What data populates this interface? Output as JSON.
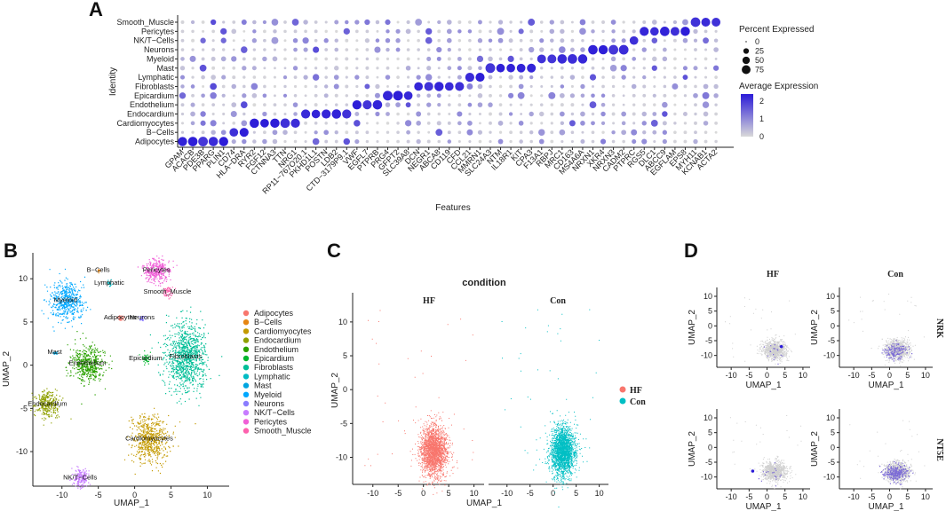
{
  "panels": {
    "a": "A",
    "b": "B",
    "c": "C",
    "d": "D"
  },
  "chart_data": [
    {
      "type": "dotplot",
      "panel": "A",
      "xlabel": "Features",
      "ylabel": "Identity",
      "identities": [
        "Smooth_Muscle",
        "Pericytes",
        "NK/T−Cells",
        "Neurons",
        "Myeloid",
        "Mast",
        "Lymphatic",
        "Fibroblasts",
        "Epicardium",
        "Endothelium",
        "Endocardium",
        "Cardiomyocytes",
        "B−Cells",
        "Adipocytes"
      ],
      "features": [
        "GPAM",
        "ACACB",
        "PDE3B",
        "PPARG",
        "PLIN1",
        "CD74",
        "HLA−DRA",
        "RYR2",
        "FGF12",
        "CTNNA3",
        "TTN",
        "NRG1",
        "RP11−767O20.1",
        "PKHD1L1",
        "POSTN",
        "LDB2",
        "CTD−3179P9.1",
        "VWF",
        "EGFL7",
        "PTPRB",
        "PRG4",
        "GFPT2",
        "SLC39A8",
        "DCN",
        "NEGR1",
        "ABCA8",
        "CD119",
        "CFD",
        "CCL21",
        "MMRN1",
        "SLC24A3",
        "NTM",
        "IL18R1",
        "KIT",
        "CPA3",
        "F13A1",
        "RBPJ",
        "MRC1",
        "CD163",
        "MS4A6A",
        "NRXN1",
        "XKR4",
        "NRXN3",
        "CADM2",
        "PTPRC",
        "RGS5",
        "DLC1",
        "ABCC9",
        "EGFLAM",
        "EPS8",
        "MYH11",
        "KCNAB1",
        "ACTA2"
      ],
      "marker_blocks": [
        {
          "identity": "Adipocytes",
          "features": [
            "GPAM",
            "ACACB",
            "PDE3B",
            "PPARG",
            "PLIN1"
          ]
        },
        {
          "identity": "B−Cells",
          "features": [
            "CD74",
            "HLA−DRA"
          ]
        },
        {
          "identity": "Cardiomyocytes",
          "features": [
            "RYR2",
            "FGF12",
            "CTNNA3",
            "TTN",
            "NRG1"
          ]
        },
        {
          "identity": "Endocardium",
          "features": [
            "RP11−767O20.1",
            "PKHD1L1",
            "POSTN",
            "LDB2",
            "CTD−3179P9.1"
          ]
        },
        {
          "identity": "Endothelium",
          "features": [
            "VWF",
            "EGFL7",
            "PTPRB"
          ]
        },
        {
          "identity": "Epicardium",
          "features": [
            "PRG4",
            "GFPT2",
            "SLC39A8"
          ]
        },
        {
          "identity": "Fibroblasts",
          "features": [
            "DCN",
            "NEGR1",
            "ABCA8",
            "CD119",
            "CFD"
          ]
        },
        {
          "identity": "Lymphatic",
          "features": [
            "CCL21",
            "MMRN1"
          ]
        },
        {
          "identity": "Mast",
          "features": [
            "SLC24A3",
            "NTM",
            "IL18R1",
            "KIT",
            "CPA3"
          ]
        },
        {
          "identity": "Myeloid",
          "features": [
            "F13A1",
            "RBPJ",
            "MRC1",
            "CD163",
            "MS4A6A"
          ]
        },
        {
          "identity": "Neurons",
          "features": [
            "NRXN1",
            "XKR4",
            "NRXN3",
            "CADM2"
          ]
        },
        {
          "identity": "NK/T−Cells",
          "features": [
            "PTPRC"
          ]
        },
        {
          "identity": "Pericytes",
          "features": [
            "RGS5",
            "DLC1",
            "ABCC9",
            "EGFLAM",
            "EPS8"
          ]
        },
        {
          "identity": "Smooth_Muscle",
          "features": [
            "MYH11",
            "KCNAB1",
            "ACTA2"
          ]
        }
      ],
      "size_legend": {
        "title": "Percent Expressed",
        "values": [
          0,
          25,
          50,
          75
        ]
      },
      "color_legend": {
        "title": "Average Expression",
        "ticks": [
          2,
          1,
          0
        ],
        "low_color": "#d9d9d9",
        "high_color": "#2b1bd8"
      }
    },
    {
      "type": "scatter",
      "panel": "B",
      "xlabel": "UMAP_1",
      "ylabel": "UMAP_2",
      "xlim": [
        -14,
        13
      ],
      "ylim": [
        -14,
        13
      ],
      "xticks": [
        -10,
        -5,
        0,
        5,
        10
      ],
      "yticks": [
        -10,
        -5,
        0,
        5,
        10
      ],
      "clusters": [
        {
          "name": "Adipocytes",
          "color": "#f8766d",
          "cx": -2,
          "cy": 5.5,
          "label": "Adipocytes"
        },
        {
          "name": "B−Cells",
          "color": "#e68613",
          "cx": -5,
          "cy": 11,
          "label": "B−Cells"
        },
        {
          "name": "Cardiomyocytes",
          "color": "#c49a00",
          "cx": 2,
          "cy": -8.5,
          "label": "Cardiomyocytes"
        },
        {
          "name": "Endocardium",
          "color": "#8fa000",
          "cx": -12,
          "cy": -4.5,
          "label": "Endocardium"
        },
        {
          "name": "Endothelium",
          "color": "#2aa100",
          "cx": -6.5,
          "cy": 0.2,
          "label": "Endothelium"
        },
        {
          "name": "Epicardium",
          "color": "#00b72d",
          "cx": 1.5,
          "cy": 0.8,
          "label": "Epicardium"
        },
        {
          "name": "Fibroblasts",
          "color": "#00be97",
          "cx": 7,
          "cy": 1,
          "label": "Fibroblasts"
        },
        {
          "name": "Lymphatic",
          "color": "#00bbc3",
          "cx": -3.5,
          "cy": 9.5,
          "label": "Lymphatic"
        },
        {
          "name": "Mast",
          "color": "#00a5e0",
          "cx": -11,
          "cy": 1.5,
          "label": "Mast"
        },
        {
          "name": "Myeloid",
          "color": "#00a8ff",
          "cx": -9.5,
          "cy": 7.5,
          "label": "Myeloid"
        },
        {
          "name": "Neurons",
          "color": "#8a7cff",
          "cx": 1,
          "cy": 5.5,
          "label": "Neurons"
        },
        {
          "name": "NK/T−Cells",
          "color": "#c77cff",
          "cx": -7.5,
          "cy": -13,
          "label": "NK/T−Cells"
        },
        {
          "name": "Pericytes",
          "color": "#f060d7",
          "cx": 3,
          "cy": 11,
          "label": "Pericytes"
        },
        {
          "name": "Smooth_Muscle",
          "color": "#fd61ae",
          "cx": 4.5,
          "cy": 8.5,
          "label": "Smooth_Muscle"
        }
      ]
    },
    {
      "type": "scatter",
      "panel": "C",
      "title": "condition",
      "xlabel": "UMAP_1",
      "ylabel": "UMAP_2",
      "facets": [
        "HF",
        "Con"
      ],
      "xticks": [
        -10,
        -5,
        0,
        5,
        10
      ],
      "yticks": [
        10,
        5,
        0,
        -5,
        -10
      ],
      "legend": [
        {
          "name": "HF",
          "color": "#f8766d"
        },
        {
          "name": "Con",
          "color": "#00bfc4"
        }
      ]
    },
    {
      "type": "scatter",
      "panel": "D",
      "xlabel": "UMAP_1",
      "ylabel": "UMAP_2",
      "columns": [
        "HF",
        "Con"
      ],
      "rows": [
        "NRK",
        "NT5E"
      ],
      "xticks": [
        -10,
        -5,
        0,
        5,
        10
      ],
      "yticks": [
        10,
        5,
        0,
        -5,
        -10
      ]
    }
  ]
}
